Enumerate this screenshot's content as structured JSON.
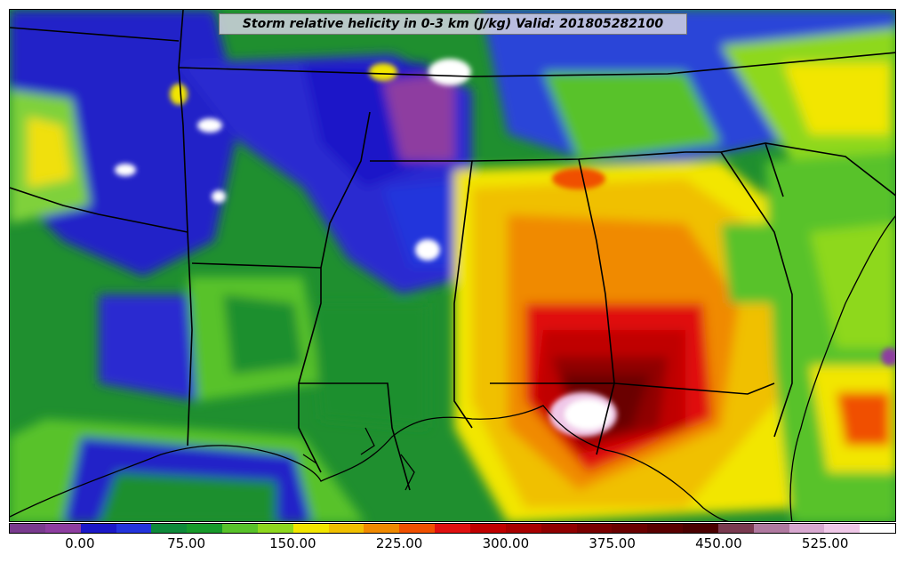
{
  "title": "Storm relative helicity in 0-3 km (J/kg) Valid: 201805282100",
  "colorbar": {
    "colors": [
      "#7a3b8f",
      "#8e3ea0",
      "#1b18c8",
      "#2434dc",
      "#0e8a3a",
      "#179a2a",
      "#58c22a",
      "#8ed81f",
      "#f2e600",
      "#f0c000",
      "#f08a00",
      "#f05000",
      "#e01010",
      "#c00000",
      "#a80000",
      "#900000",
      "#7a0000",
      "#6a0000",
      "#5a0000",
      "#4a0000",
      "#7a3a50",
      "#b07aa0",
      "#d8a8d0",
      "#f0c8e8",
      "#ffffff"
    ],
    "tick_labels": [
      "0.00",
      "75.00",
      "150.00",
      "225.00",
      "300.00",
      "375.00",
      "450.00",
      "525.00"
    ]
  }
}
